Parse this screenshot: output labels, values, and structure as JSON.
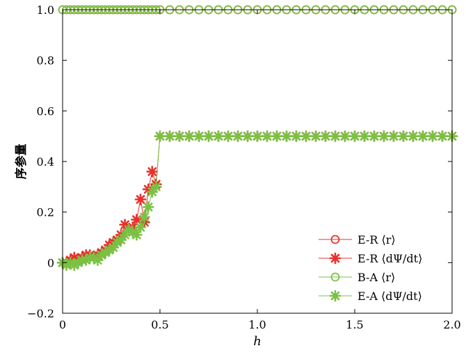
{
  "chart_data": {
    "type": "line",
    "title": "",
    "xlabel": "h",
    "ylabel": "序参量",
    "xlim": [
      0,
      2.0
    ],
    "ylim": [
      -0.2,
      1.0
    ],
    "xticks": [
      "0",
      "0.5",
      "1.0",
      "1.5",
      "2.0"
    ],
    "yticks": [
      "−0.2",
      "0",
      "0.2",
      "0.4",
      "0.6",
      "0.8",
      "1.0"
    ],
    "legend_position": "bottom-right",
    "series": [
      {
        "name": "E-R ⟨r⟩",
        "color": "#e8302c",
        "marker": "circle",
        "x": [
          0,
          0.02,
          0.04,
          0.06,
          0.08,
          0.1,
          0.12,
          0.14,
          0.16,
          0.18,
          0.2,
          0.22,
          0.24,
          0.26,
          0.28,
          0.3,
          0.32,
          0.34,
          0.36,
          0.38,
          0.4,
          0.42,
          0.44,
          0.46,
          0.48,
          0.5,
          0.55,
          0.6,
          0.65,
          0.7,
          0.75,
          0.8,
          0.85,
          0.9,
          0.95,
          1.0,
          1.05,
          1.1,
          1.15,
          1.2,
          1.25,
          1.3,
          1.35,
          1.4,
          1.45,
          1.5,
          1.55,
          1.6,
          1.65,
          1.7,
          1.75,
          1.8,
          1.85,
          1.9,
          1.95,
          2.0
        ],
        "y": [
          1,
          1,
          1,
          1,
          1,
          1,
          1,
          1,
          1,
          1,
          1,
          1,
          1,
          1,
          1,
          1,
          1,
          1,
          1,
          1,
          1,
          1,
          1,
          1,
          1,
          1,
          1,
          1,
          1,
          1,
          1,
          1,
          1,
          1,
          1,
          1,
          1,
          1,
          1,
          1,
          1,
          1,
          1,
          1,
          1,
          1,
          1,
          1,
          1,
          1,
          1,
          1,
          1,
          1,
          1,
          1
        ]
      },
      {
        "name": "E-R ⟨dΨ/dt⟩",
        "color": "#e8302c",
        "marker": "star",
        "x": [
          0,
          0.02,
          0.04,
          0.06,
          0.08,
          0.1,
          0.12,
          0.14,
          0.16,
          0.18,
          0.2,
          0.22,
          0.24,
          0.26,
          0.28,
          0.3,
          0.32,
          0.34,
          0.36,
          0.38,
          0.4,
          0.42,
          0.44,
          0.46,
          0.48,
          0.5,
          0.55,
          0.6,
          0.65,
          0.7,
          0.75,
          0.8,
          0.85,
          0.9,
          0.95,
          1.0,
          1.05,
          1.1,
          1.15,
          1.2,
          1.25,
          1.3,
          1.35,
          1.4,
          1.45,
          1.5,
          1.55,
          1.6,
          1.65,
          1.7,
          1.75,
          1.8,
          1.85,
          1.9,
          1.95,
          2.0
        ],
        "y": [
          0.0,
          0.0,
          0.01,
          0.02,
          0.01,
          0.02,
          0.03,
          0.03,
          0.02,
          0.03,
          0.04,
          0.05,
          0.07,
          0.08,
          0.09,
          0.11,
          0.15,
          0.13,
          0.14,
          0.17,
          0.25,
          0.16,
          0.29,
          0.36,
          0.31,
          0.5,
          0.5,
          0.5,
          0.5,
          0.5,
          0.5,
          0.5,
          0.5,
          0.5,
          0.5,
          0.5,
          0.5,
          0.5,
          0.5,
          0.5,
          0.5,
          0.5,
          0.5,
          0.5,
          0.5,
          0.5,
          0.5,
          0.5,
          0.5,
          0.5,
          0.5,
          0.5,
          0.5,
          0.5,
          0.5,
          0.5
        ]
      },
      {
        "name": "B-A ⟨r⟩",
        "color": "#7ac143",
        "marker": "circle",
        "x": [
          0,
          0.02,
          0.04,
          0.06,
          0.08,
          0.1,
          0.12,
          0.14,
          0.16,
          0.18,
          0.2,
          0.22,
          0.24,
          0.26,
          0.28,
          0.3,
          0.32,
          0.34,
          0.36,
          0.38,
          0.4,
          0.42,
          0.44,
          0.46,
          0.48,
          0.5,
          0.55,
          0.6,
          0.65,
          0.7,
          0.75,
          0.8,
          0.85,
          0.9,
          0.95,
          1.0,
          1.05,
          1.1,
          1.15,
          1.2,
          1.25,
          1.3,
          1.35,
          1.4,
          1.45,
          1.5,
          1.55,
          1.6,
          1.65,
          1.7,
          1.75,
          1.8,
          1.85,
          1.9,
          1.95,
          2.0
        ],
        "y": [
          1,
          1,
          1,
          1,
          1,
          1,
          1,
          1,
          1,
          1,
          1,
          1,
          1,
          1,
          1,
          1,
          1,
          1,
          1,
          1,
          1,
          1,
          1,
          1,
          1,
          1,
          1,
          1,
          1,
          1,
          1,
          1,
          1,
          1,
          1,
          1,
          1,
          1,
          1,
          1,
          1,
          1,
          1,
          1,
          1,
          1,
          1,
          1,
          1,
          1,
          1,
          1,
          1,
          1,
          1,
          1
        ]
      },
      {
        "name": "E-A ⟨dΨ/dt⟩",
        "color": "#7ac143",
        "marker": "star",
        "x": [
          0,
          0.02,
          0.04,
          0.06,
          0.08,
          0.1,
          0.12,
          0.14,
          0.16,
          0.18,
          0.2,
          0.22,
          0.24,
          0.26,
          0.28,
          0.3,
          0.32,
          0.34,
          0.36,
          0.38,
          0.4,
          0.42,
          0.44,
          0.46,
          0.48,
          0.5,
          0.55,
          0.6,
          0.65,
          0.7,
          0.75,
          0.8,
          0.85,
          0.9,
          0.95,
          1.0,
          1.05,
          1.1,
          1.15,
          1.2,
          1.25,
          1.3,
          1.35,
          1.4,
          1.45,
          1.5,
          1.55,
          1.6,
          1.65,
          1.7,
          1.75,
          1.8,
          1.85,
          1.9,
          1.95,
          2.0
        ],
        "y": [
          0.0,
          -0.01,
          0.0,
          -0.01,
          0.0,
          0.01,
          0.01,
          0.02,
          0.02,
          0.01,
          0.03,
          0.04,
          0.05,
          0.06,
          0.08,
          0.09,
          0.11,
          0.13,
          0.12,
          0.11,
          0.14,
          0.18,
          0.22,
          0.28,
          0.3,
          0.5,
          0.5,
          0.5,
          0.5,
          0.5,
          0.5,
          0.5,
          0.5,
          0.5,
          0.5,
          0.5,
          0.5,
          0.5,
          0.5,
          0.5,
          0.5,
          0.5,
          0.5,
          0.5,
          0.5,
          0.5,
          0.5,
          0.5,
          0.5,
          0.5,
          0.5,
          0.5,
          0.5,
          0.5,
          0.5,
          0.5
        ]
      }
    ]
  }
}
